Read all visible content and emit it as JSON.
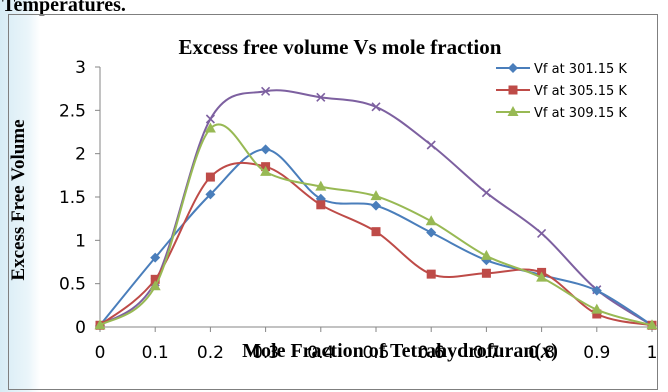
{
  "page": {
    "caption": "Temperatures."
  },
  "chart_data": {
    "type": "line",
    "title": "Excess free volume Vs mole fraction",
    "xlabel_main": "Mole Fraction of Tetrahydrofuran(",
    "xlabel_var": "x",
    "xlabel_close": ")",
    "ylabel": "Excess Free Volume",
    "xlim": [
      0,
      1
    ],
    "ylim": [
      0,
      3
    ],
    "x_ticks": [
      "0",
      "0.1",
      "0.2",
      "0.3",
      "0.4",
      "0.5",
      "0.6",
      "0.7",
      "0.8",
      "0.9",
      "1"
    ],
    "y_ticks": [
      "0",
      "0.5",
      "1",
      "1.5",
      "2",
      "2.5",
      "3"
    ],
    "grid": false,
    "legend_position": "top-right",
    "x": [
      0,
      0.1,
      0.2,
      0.3,
      0.4,
      0.5,
      0.6,
      0.7,
      0.8,
      0.9,
      1.0
    ],
    "series": [
      {
        "name": "Vf at 301.15 K",
        "color": "#4a7ebb",
        "marker": "diamond",
        "values": [
          0.02,
          0.8,
          1.53,
          2.05,
          1.48,
          1.4,
          1.09,
          0.77,
          0.6,
          0.42,
          0.02
        ]
      },
      {
        "name": "Vf at 305.15 K",
        "color": "#be4b48",
        "marker": "square",
        "values": [
          0.02,
          0.55,
          1.73,
          1.85,
          1.41,
          1.1,
          0.61,
          0.62,
          0.63,
          0.15,
          0.02
        ]
      },
      {
        "name": "Vf at 309.15 K",
        "color": "#98b954",
        "marker": "triangle",
        "values": [
          0.02,
          0.47,
          2.29,
          1.79,
          1.62,
          1.51,
          1.22,
          0.82,
          0.57,
          0.2,
          0.02
        ]
      },
      {
        "color": "#7d60a0",
        "marker": "x",
        "values": [
          0.02,
          0.52,
          2.4,
          2.72,
          2.65,
          2.54,
          2.1,
          1.55,
          1.08,
          0.43,
          0.02
        ]
      }
    ]
  }
}
